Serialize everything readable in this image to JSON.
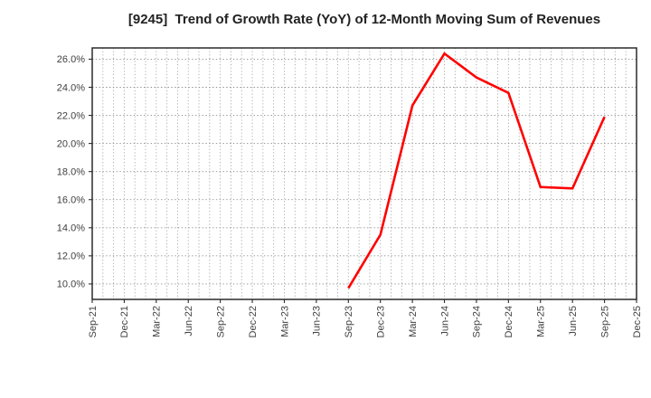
{
  "chart_data": {
    "type": "line",
    "title": "[9245]  Trend of Growth Rate (YoY) of 12-Month Moving Sum of Revenues",
    "xlabel": "",
    "ylabel": "",
    "legend": "none",
    "grid": "dotted gray, monthly vertical lines, horizontal lines every 2%",
    "x_tick_labels": [
      "Sep-21",
      "Dec-21",
      "Mar-22",
      "Jun-22",
      "Sep-22",
      "Dec-22",
      "Mar-23",
      "Jun-23",
      "Sep-23",
      "Dec-23",
      "Mar-24",
      "Jun-24",
      "Sep-24",
      "Dec-24",
      "Mar-25",
      "Jun-25",
      "Sep-25",
      "Dec-25"
    ],
    "months_per_tick": 3,
    "y_ticks": [
      26.0,
      24.0,
      22.0,
      20.0,
      18.0,
      16.0,
      14.0,
      12.0,
      10.0
    ],
    "y_tick_labels": [
      "26.0%",
      "24.0%",
      "22.0%",
      "20.0%",
      "18.0%",
      "16.0%",
      "14.0%",
      "12.0%",
      "10.0%"
    ],
    "ylim": [
      8.9,
      26.8
    ],
    "series": [
      {
        "name": "Growth Rate (YoY) of 12-Month Moving Sum of Revenues",
        "color": "#ff0000",
        "points": [
          {
            "x": "Sep-23",
            "y": 9.7
          },
          {
            "x": "Dec-23",
            "y": 13.5
          },
          {
            "x": "Mar-24",
            "y": 22.7
          },
          {
            "x": "Jun-24",
            "y": 26.4
          },
          {
            "x": "Sep-24",
            "y": 24.7
          },
          {
            "x": "Dec-24",
            "y": 23.6
          },
          {
            "x": "Mar-25",
            "y": 16.9
          },
          {
            "x": "Jun-25",
            "y": 16.8
          },
          {
            "x": "Sep-25",
            "y": 21.9
          }
        ]
      }
    ],
    "colors": {
      "line": "#ff0000",
      "grid_horizontal": "#8f8f8f",
      "grid_vertical": "#a3a3a3",
      "plot_border": "#2b2b2b",
      "tick_label": "#404040",
      "title": "#222222",
      "background": "#ffffff"
    }
  }
}
